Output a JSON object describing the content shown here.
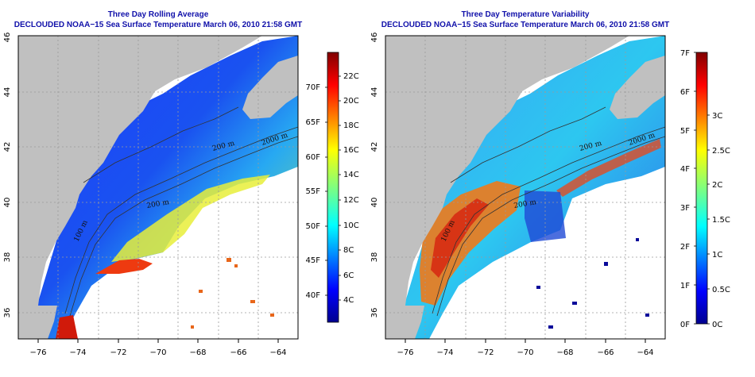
{
  "panels": [
    {
      "title": "Three Day Rolling Average",
      "subtitle": "DECLOUDED NOAA−15 Sea Surface Temperature March 06, 2010 21:58 GMT",
      "colorbar": {
        "left_ticks": [
          "70F",
          "65F",
          "60F",
          "55F",
          "50F",
          "45F",
          "40F"
        ],
        "right_ticks": [
          "22C",
          "20C",
          "18C",
          "16C",
          "14C",
          "12C",
          "10C",
          "8C",
          "6C",
          "4C"
        ]
      }
    },
    {
      "title": "Three Day Temperature Variability",
      "subtitle": "DECLOUDED NOAA−15 Sea Surface Temperature March 06, 2010 21:58 GMT",
      "colorbar": {
        "left_ticks": [
          "7F",
          "6F",
          "5F",
          "4F",
          "3F",
          "2F",
          "1F",
          "0F"
        ],
        "right_ticks": [
          "3C",
          "2.5C",
          "2C",
          "1.5C",
          "1C",
          "0.5C",
          "0C"
        ]
      }
    }
  ],
  "axes": {
    "x_ticks": [
      "−76",
      "−74",
      "−72",
      "−70",
      "−68",
      "−66",
      "−64"
    ],
    "y_ticks": [
      "36",
      "38",
      "40",
      "42",
      "44",
      "46"
    ]
  },
  "contour_labels": [
    "2000 m",
    "200 m",
    "100 m",
    "200 m"
  ],
  "colors": {
    "land": "#c0c0c0",
    "nodata": "#ffffff",
    "title": "#1111aa",
    "grid": "#9a9a9a"
  }
}
